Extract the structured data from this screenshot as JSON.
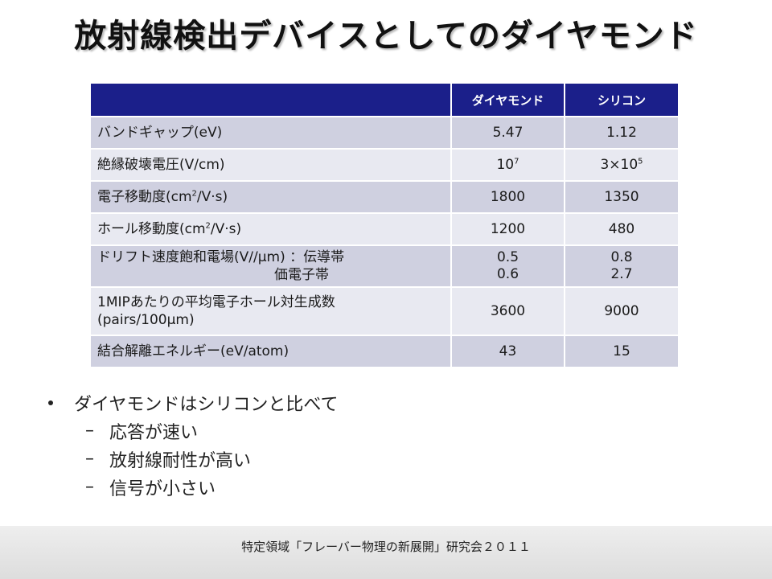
{
  "slide": {
    "title": "放射線検出デバイスとしてのダイヤモンド"
  },
  "table": {
    "headers": [
      "",
      "ダイヤモンド",
      "シリコン"
    ],
    "rows": [
      {
        "label": "バンドギャップ(eV)",
        "diamond": "5.47",
        "silicon": "1.12"
      },
      {
        "label_pre": "絶縁破壊電圧(V/cm)",
        "diamond_base": "10",
        "diamond_exp": "7",
        "silicon_base": "3×10",
        "silicon_exp": "5"
      },
      {
        "label_pre": "電子移動度(cm",
        "label_sup": "2",
        "label_post": "/V·s)",
        "diamond": "1800",
        "silicon": "1350"
      },
      {
        "label_pre": "ホール移動度(cm",
        "label_sup": "2",
        "label_post": "/V·s)",
        "diamond": "1200",
        "silicon": "480"
      },
      {
        "label_line1": "ドリフト速度飽和電場(V//μm) ：伝導帯",
        "label_line2": "価電子帯",
        "diamond_line1": "0.5",
        "diamond_line2": "0.6",
        "silicon_line1": "0.8",
        "silicon_line2": "2.7"
      },
      {
        "label_line1": "1MIPあたりの平均電子ホール対生成数",
        "label_line2": "(pairs/100μm)",
        "diamond": "3600",
        "silicon": "9000"
      },
      {
        "label": "結合解離エネルギー(eV/atom)",
        "diamond": "43",
        "silicon": "15"
      }
    ]
  },
  "bullets": {
    "main": "ダイヤモンドはシリコンと比べて",
    "sub": [
      "応答が速い",
      "放射線耐性が高い",
      "信号が小さい"
    ],
    "dash": "–"
  },
  "footer": {
    "text": "特定領域「フレーバー物理の新展開」研究会２０１１"
  },
  "colors": {
    "header_bg": "#1b1f8a",
    "row_dark": "#cfd0e0",
    "row_light": "#e8e9f1"
  }
}
